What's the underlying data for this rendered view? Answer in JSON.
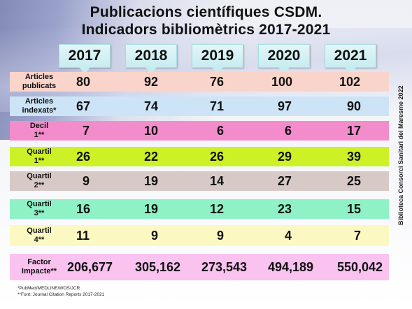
{
  "title_line1": "Publicacions científiques CSDM.",
  "title_line2": "Indicadors bibliomètrics  2017-2021",
  "years": [
    "2017",
    "2018",
    "2019",
    "2020",
    "2021"
  ],
  "rows": [
    {
      "label1": "Articles",
      "label2": "publicats",
      "color": "#f9d4cb",
      "values": [
        "80",
        "92",
        "76",
        "100",
        "102"
      ]
    },
    {
      "label1": "Articles",
      "label2": "indexats*",
      "color": "#cde3f6",
      "values": [
        "67",
        "74",
        "71",
        "97",
        "90"
      ]
    },
    {
      "label1": "Decil",
      "label2": "1**",
      "color": "#f38ccb",
      "values": [
        "7",
        "10",
        "6",
        "6",
        "17"
      ]
    },
    {
      "label1": "Quartil",
      "label2": "1**",
      "color": "#ccf227",
      "values": [
        "26",
        "22",
        "26",
        "29",
        "39"
      ]
    },
    {
      "label1": "Quartil",
      "label2": "2**",
      "color": "#d7cac6",
      "values": [
        "9",
        "19",
        "14",
        "27",
        "25"
      ]
    },
    {
      "label1": "Quartil",
      "label2": "3**",
      "color": "#8ef2c6",
      "values": [
        "16",
        "19",
        "12",
        "23",
        "15"
      ]
    },
    {
      "label1": "Quartil",
      "label2": "4**",
      "color": "#fcf8c2",
      "values": [
        "11",
        "9",
        "9",
        "4",
        "7"
      ]
    },
    {
      "label1": "Factor",
      "label2": "Impacte**",
      "color": "#f9c2ef",
      "values": [
        "206,677",
        "305,162",
        "273,543",
        "494,189",
        "550,042"
      ]
    }
  ],
  "side_text": "Biblioteca Consorci Sanitari del Maresme 2022",
  "footnote1": "*PubMed/MEDLINE/WOS/JCR",
  "footnote2": "**Font: Journal Citation Reports 2017-2021"
}
